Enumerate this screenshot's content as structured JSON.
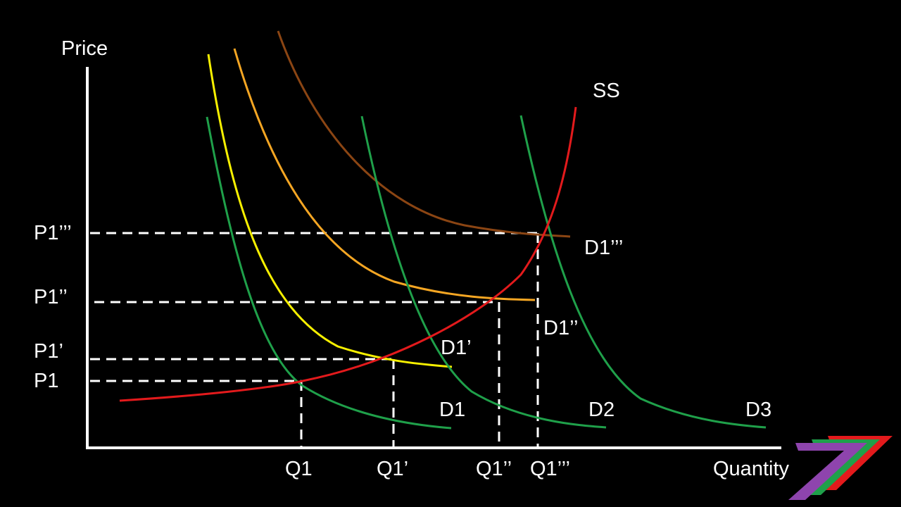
{
  "axes": {
    "y_label": "Price",
    "x_label": "Quantity"
  },
  "curves": {
    "supply": {
      "label": "SS",
      "color": "#e31a1c"
    },
    "d1": {
      "label": "D1",
      "color": "#1fa04a"
    },
    "d2": {
      "label": "D2",
      "color": "#1fa04a"
    },
    "d3": {
      "label": "D3",
      "color": "#1fa04a"
    },
    "d1p": {
      "label": "D1’",
      "color": "#f7f000"
    },
    "d1pp": {
      "label": "D1’’",
      "color": "#f5a623"
    },
    "d1ppp": {
      "label": "D1’’’",
      "color": "#8b4513"
    }
  },
  "price_levels": [
    "P1’’’",
    "P1’’",
    "P1’",
    "P1"
  ],
  "quantity_levels": [
    "Q1",
    "Q1’",
    "Q1’’",
    "Q1’’’"
  ],
  "guide_color": "#ffffff",
  "logo": {
    "colors": [
      "#e31a1c",
      "#1fa04a",
      "#8e44ad"
    ]
  }
}
